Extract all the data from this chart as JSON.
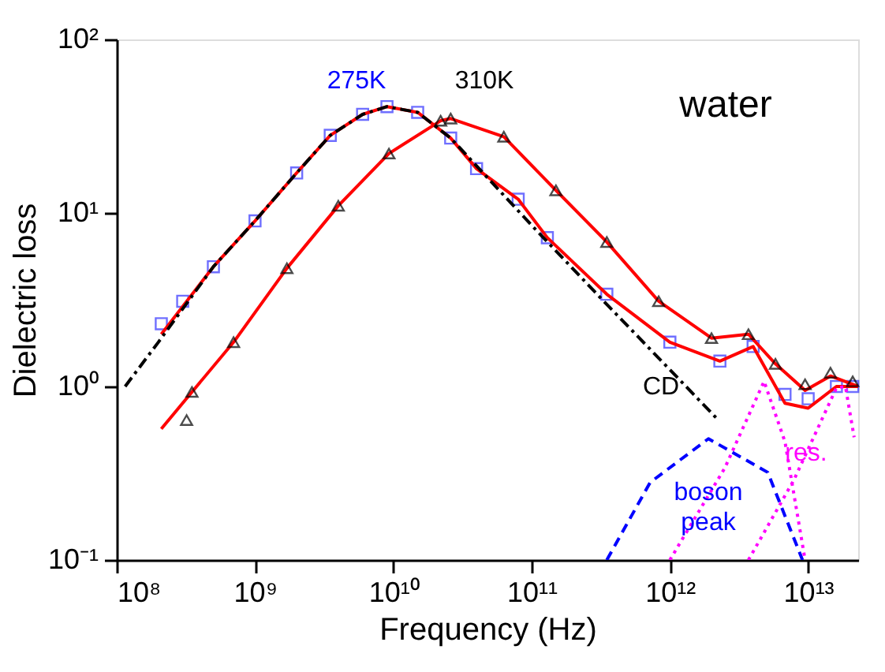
{
  "chart_data": {
    "type": "scatter",
    "xlabel": "Frequency (Hz)",
    "ylabel": "Dielectric loss",
    "log": "xy",
    "grid": false,
    "legend": false,
    "xlim": [
      100000000.0,
      23000000000000.0
    ],
    "ylim": [
      0.1,
      100
    ],
    "xticks": [
      {
        "value": 100000000.0,
        "label": "10⁸"
      },
      {
        "value": 1000000000.0,
        "label": "10⁹"
      },
      {
        "value": 10000000000.0,
        "label": "10¹⁰"
      },
      {
        "value": 100000000000.0,
        "label": "10¹¹"
      },
      {
        "value": 1000000000000.0,
        "label": "10¹²"
      },
      {
        "value": 10000000000000.0,
        "label": "10¹³"
      }
    ],
    "yticks": [
      {
        "value": 0.1,
        "label": "10⁻¹"
      },
      {
        "value": 1,
        "label": "10⁰"
      },
      {
        "value": 10,
        "label": "10¹"
      },
      {
        "value": 100,
        "label": "10²"
      }
    ],
    "series": [
      {
        "marker": "square",
        "color": "#3333ff",
        "x": [
          210000000.0,
          300000000.0,
          500000000.0,
          1000000000.0,
          2000000000.0,
          3500000000.0,
          6000000000.0,
          9000000000.0,
          15000000000.0,
          26000000000.0,
          40000000000.0,
          80000000000.0,
          130000000000.0,
          350000000000.0,
          1000000000000.0,
          2300000000000.0,
          4000000000000.0,
          6800000000000.0,
          10000000000000.0,
          16000000000000.0,
          21000000000000.0
        ],
        "values": [
          2.3,
          3.1,
          4.9,
          9,
          17,
          28,
          37,
          41,
          38,
          27,
          18,
          12,
          7.2,
          3.4,
          1.8,
          1.4,
          1.7,
          0.9,
          0.85,
          1.0,
          1.0
        ]
      },
      {
        "marker": "triangle",
        "color": "#000000",
        "x": [
          320000000.0,
          350000000.0,
          700000000.0,
          1700000000.0,
          4000000000.0,
          9300000000.0,
          22000000000.0,
          26000000000.0,
          63000000000.0,
          150000000000.0,
          350000000000.0,
          830000000000.0,
          2000000000000.0,
          3700000000000.0,
          5800000000000.0,
          9500000000000.0,
          14500000000000.0,
          21000000000000.0
        ],
        "values": [
          0.64,
          0.93,
          1.8,
          4.8,
          11,
          22,
          34,
          35,
          27.5,
          13.5,
          6.8,
          3.1,
          1.9,
          2.0,
          1.35,
          1.03,
          1.2,
          1.07
        ]
      },
      {
        "type": "line",
        "line_style": "solid",
        "color": "#ff0000",
        "x": [
          210000000.0,
          500000000.0,
          1000000000.0,
          2000000000.0,
          3500000000.0,
          6000000000.0,
          9000000000.0,
          15000000000.0,
          26000000000.0,
          40000000000.0,
          80000000000.0,
          130000000000.0,
          350000000000.0,
          1000000000000.0,
          2300000000000.0,
          4000000000000.0,
          6800000000000.0,
          10000000000000.0,
          16000000000000.0,
          23000000000000.0
        ],
        "values": [
          2.0,
          4.9,
          9,
          17,
          28,
          37,
          41,
          38,
          27,
          18,
          12,
          7.2,
          3.4,
          1.8,
          1.4,
          1.7,
          0.8,
          0.75,
          1.0,
          1.0
        ]
      },
      {
        "type": "line",
        "line_style": "solid",
        "color": "#ff0000",
        "x": [
          210000000.0,
          350000000.0,
          700000000.0,
          1700000000.0,
          4000000000.0,
          9300000000.0,
          22000000000.0,
          26000000000.0,
          63000000000.0,
          150000000000.0,
          350000000000.0,
          830000000000.0,
          2000000000000.0,
          3700000000000.0,
          5800000000000.0,
          9500000000000.0,
          14500000000000.0,
          23000000000000.0
        ],
        "values": [
          0.57,
          0.93,
          1.8,
          4.8,
          11,
          22,
          34,
          35,
          27.5,
          13.5,
          6.8,
          3.1,
          1.9,
          2.0,
          1.35,
          0.95,
          1.15,
          1.0
        ]
      },
      {
        "type": "line",
        "line_style": "dashdot",
        "color": "#000000",
        "x": [
          115000000.0,
          200000000.0,
          500000000.0,
          1000000000.0,
          2000000000.0,
          3500000000.0,
          6000000000.0,
          9000000000.0,
          15000000000.0,
          26000000000.0,
          100000000000.0,
          320000000000.0,
          1000000000000.0,
          2200000000000.0
        ],
        "values": [
          1.0,
          1.8,
          4.9,
          9,
          17,
          28,
          37,
          41,
          38,
          27,
          8.5,
          3.2,
          1.25,
          0.65
        ]
      },
      {
        "type": "line",
        "line_style": "dashed",
        "color": "#0000ff",
        "x": [
          350000000000.0,
          720000000000.0,
          1900000000000.0,
          5100000000000.0,
          9100000000000.0
        ],
        "values": [
          0.1,
          0.28,
          0.5,
          0.32,
          0.1
        ]
      },
      {
        "type": "line",
        "line_style": "dotted",
        "color": "#ff00ff",
        "x": [
          1000000000000.0,
          2500000000000.0,
          4800000000000.0,
          6800000000000.0,
          9500000000000.0
        ],
        "values": [
          0.1,
          0.34,
          1.07,
          0.48,
          0.1
        ]
      },
      {
        "type": "line",
        "line_style": "dotted",
        "color": "#ff00ff",
        "x": [
          3700000000000.0,
          7900000000000.0,
          16000000000000.0,
          18600000000000.0,
          21500000000000.0
        ],
        "values": [
          0.1,
          0.29,
          0.98,
          1.0,
          0.51
        ]
      }
    ],
    "annotations": [
      "275K",
      "310K",
      "water",
      "CD",
      "boson",
      "peak",
      "res."
    ]
  }
}
